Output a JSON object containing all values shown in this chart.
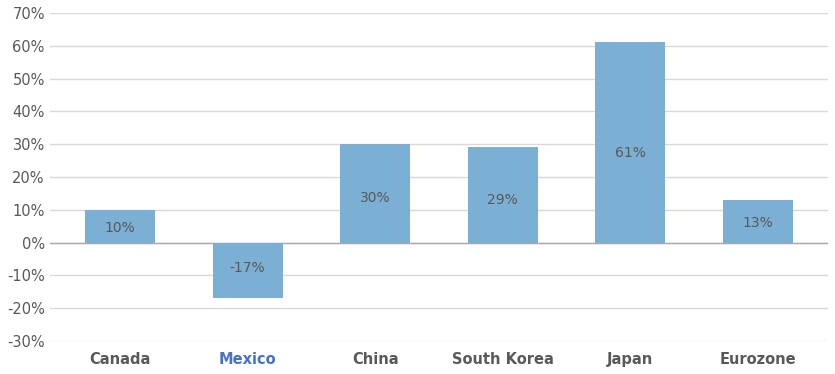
{
  "categories": [
    "Canada",
    "Mexico",
    "China",
    "South Korea",
    "Japan",
    "Eurozone"
  ],
  "values": [
    10,
    -17,
    30,
    29,
    61,
    13
  ],
  "bar_color": "#7BAFD4",
  "label_color": "#595959",
  "mexico_label_color": "#4472C4",
  "background_color": "#FFFFFF",
  "grid_color": "#D9D9D9",
  "zero_line_color": "#AAAAAA",
  "ylim": [
    -30,
    70
  ],
  "yticks": [
    -30,
    -20,
    -10,
    0,
    10,
    20,
    30,
    40,
    50,
    60,
    70
  ],
  "ytick_labels": [
    "-30%",
    "-20%",
    "-10%",
    "0%",
    "10%",
    "20%",
    "30%",
    "40%",
    "50%",
    "60%",
    "70%"
  ],
  "bar_width": 0.55,
  "label_fontsize": 10,
  "tick_fontsize": 10.5,
  "figsize": [
    8.35,
    3.74
  ],
  "dpi": 100
}
